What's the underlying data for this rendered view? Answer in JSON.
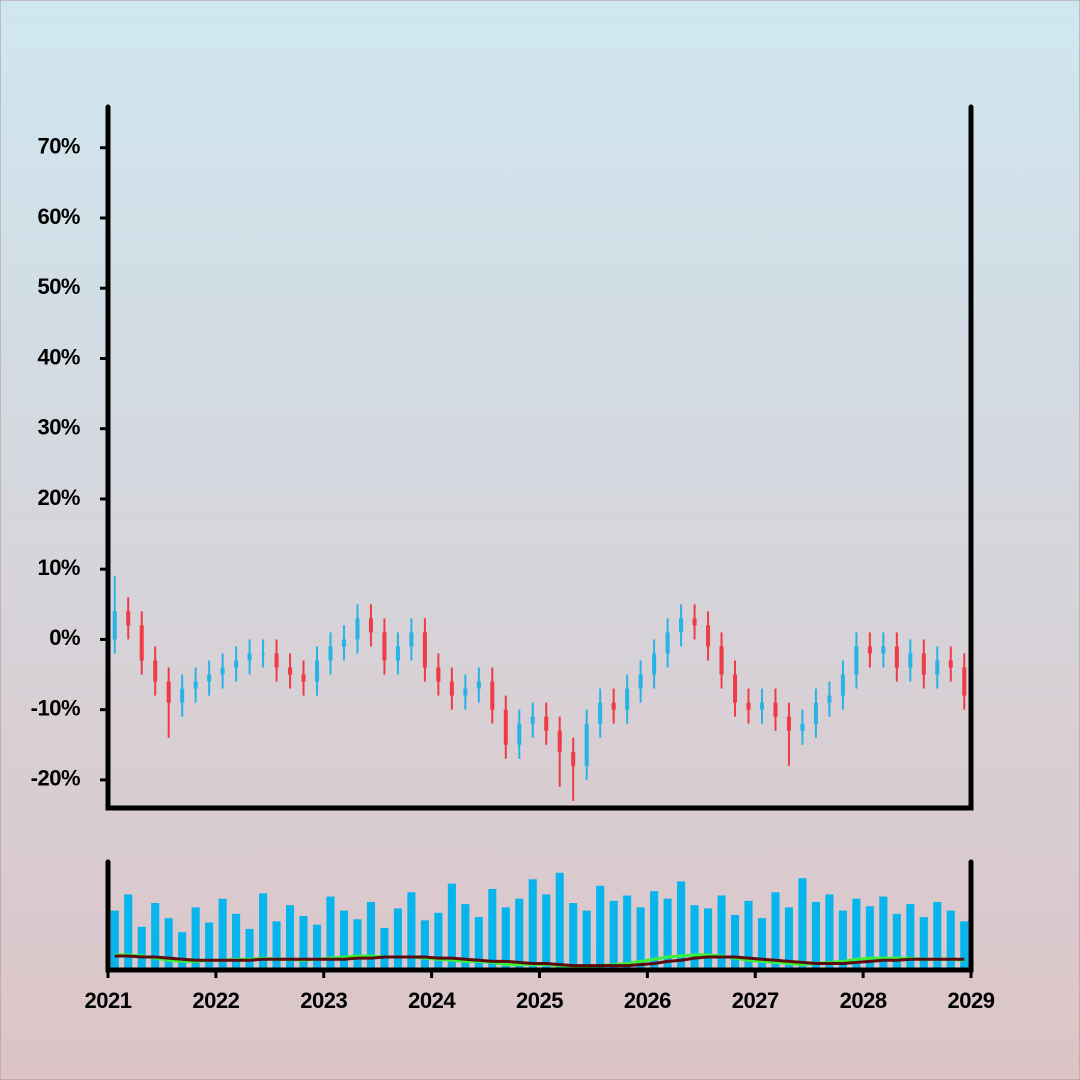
{
  "chart_data": {
    "type": "ohlc",
    "x": [
      2021.0625,
      2021.1875,
      2021.3125,
      2021.4375,
      2021.5625,
      2021.6875,
      2021.8125,
      2021.9375,
      2022.0625,
      2022.1875,
      2022.3125,
      2022.4375,
      2022.5625,
      2022.6875,
      2022.8125,
      2022.9375,
      2023.0625,
      2023.1875,
      2023.3125,
      2023.4375,
      2023.5625,
      2023.6875,
      2023.8125,
      2023.9375,
      2024.0625,
      2024.1875,
      2024.3125,
      2024.4375,
      2024.5625,
      2024.6875,
      2024.8125,
      2024.9375,
      2025.0625,
      2025.1875,
      2025.3125,
      2025.4375,
      2025.5625,
      2025.6875,
      2025.8125,
      2025.9375,
      2026.0625,
      2026.1875,
      2026.3125,
      2026.4375,
      2026.5625,
      2026.6875,
      2026.8125,
      2026.9375,
      2027.0625,
      2027.1875,
      2027.3125,
      2027.4375,
      2027.5625,
      2027.6875,
      2027.8125,
      2027.9375,
      2028.0625,
      2028.1875,
      2028.3125,
      2028.4375,
      2028.5625,
      2028.6875,
      2028.8125,
      2028.9375
    ],
    "open": [
      0,
      4,
      2,
      -3,
      -6,
      -9,
      -7,
      -6,
      -5,
      -4,
      -3,
      -2,
      -2,
      -4,
      -5,
      -6,
      -3,
      -1,
      0,
      3,
      1,
      -3,
      -1,
      1,
      -4,
      -6,
      -8,
      -7,
      -6,
      -10,
      -15,
      -12,
      -11,
      -13,
      -16,
      -18,
      -12,
      -9,
      -10,
      -7,
      -5,
      -2,
      1,
      3,
      2,
      -1,
      -5,
      -9,
      -10,
      -9,
      -11,
      -13,
      -12,
      -9,
      -8,
      -5,
      -1,
      -2,
      -1,
      -4,
      -2,
      -5,
      -3,
      -4
    ],
    "high": [
      9,
      6,
      4,
      -1,
      -4,
      -5,
      -4,
      -3,
      -2,
      -1,
      0,
      0,
      0,
      -2,
      -3,
      -1,
      1,
      2,
      5,
      5,
      3,
      1,
      3,
      3,
      -2,
      -4,
      -5,
      -4,
      -4,
      -8,
      -10,
      -9,
      -9,
      -11,
      -14,
      -10,
      -7,
      -7,
      -5,
      -3,
      0,
      3,
      5,
      5,
      4,
      1,
      -3,
      -7,
      -7,
      -7,
      -9,
      -10,
      -7,
      -6,
      -3,
      1,
      1,
      1,
      1,
      0,
      0,
      -1,
      -1,
      -2
    ],
    "low": [
      -2,
      0,
      -5,
      -8,
      -14,
      -11,
      -9,
      -8,
      -7,
      -6,
      -5,
      -4,
      -6,
      -7,
      -8,
      -8,
      -5,
      -3,
      -2,
      -1,
      -5,
      -5,
      -3,
      -6,
      -8,
      -10,
      -10,
      -9,
      -12,
      -17,
      -17,
      -14,
      -15,
      -21,
      -23,
      -20,
      -14,
      -12,
      -12,
      -9,
      -7,
      -4,
      -1,
      0,
      -3,
      -7,
      -11,
      -12,
      -12,
      -13,
      -18,
      -15,
      -14,
      -11,
      -10,
      -7,
      -4,
      -4,
      -6,
      -6,
      -7,
      -7,
      -6,
      -10
    ],
    "close": [
      4,
      2,
      -3,
      -6,
      -9,
      -7,
      -6,
      -5,
      -4,
      -3,
      -2,
      -2,
      -4,
      -5,
      -6,
      -3,
      -1,
      0,
      3,
      1,
      -3,
      -1,
      1,
      -4,
      -6,
      -8,
      -7,
      -6,
      -10,
      -15,
      -12,
      -11,
      -13,
      -16,
      -18,
      -12,
      -9,
      -10,
      -7,
      -5,
      -2,
      1,
      3,
      2,
      -1,
      -5,
      -9,
      -10,
      -9,
      -11,
      -13,
      -12,
      -9,
      -8,
      -5,
      -1,
      -2,
      -1,
      -4,
      -2,
      -5,
      -3,
      -4,
      -8
    ],
    "up_color": "#27b3e6",
    "down_color": "#ee3b45",
    "volume": [
      55,
      70,
      40,
      62,
      48,
      35,
      58,
      44,
      66,
      52,
      38,
      71,
      45,
      60,
      50,
      42,
      68,
      55,
      47,
      63,
      39,
      57,
      72,
      46,
      53,
      80,
      61,
      49,
      75,
      58,
      66,
      84,
      70,
      90,
      62,
      55,
      78,
      64,
      69,
      58,
      73,
      66,
      82,
      60,
      57,
      69,
      51,
      64,
      48,
      72,
      58,
      85,
      63,
      70,
      55,
      66,
      59,
      68,
      52,
      61,
      49,
      63,
      55,
      45
    ],
    "volume_color": "#08b4ec",
    "volume_ylim": [
      0,
      100
    ],
    "volume_lines": [
      {
        "color": "#3cf03c",
        "values": [
          14,
          14,
          13,
          11,
          9,
          8,
          8,
          9,
          9,
          10,
          10,
          11,
          10,
          10,
          9,
          10,
          11,
          12,
          13,
          13,
          12,
          12,
          12,
          11,
          10,
          9,
          8,
          8,
          7,
          5,
          5,
          5,
          5,
          4,
          3,
          3,
          4,
          5,
          6,
          8,
          10,
          12,
          13,
          14,
          14,
          13,
          11,
          9,
          8,
          7,
          6,
          5,
          6,
          7,
          8,
          10,
          11,
          11,
          11,
          11,
          10,
          10,
          10,
          9
        ]
      },
      {
        "color": "#5a0a0a",
        "values": [
          13,
          13,
          12,
          12,
          11,
          10,
          9,
          9,
          9,
          9,
          9,
          10,
          10,
          10,
          10,
          10,
          10,
          10,
          11,
          11,
          12,
          12,
          12,
          12,
          11,
          11,
          10,
          9,
          8,
          8,
          7,
          6,
          6,
          5,
          4,
          4,
          4,
          4,
          4,
          5,
          6,
          8,
          9,
          11,
          12,
          12,
          12,
          11,
          10,
          9,
          8,
          7,
          6,
          6,
          6,
          7,
          8,
          9,
          9,
          10,
          10,
          10,
          10,
          10
        ]
      }
    ],
    "xlim": [
      2021,
      2029
    ],
    "xticks": [
      2021,
      2022,
      2023,
      2024,
      2025,
      2026,
      2027,
      2028,
      2029
    ],
    "ylim": [
      -24,
      75.8
    ],
    "yticks": [
      {
        "value": -20,
        "label": "-20%"
      },
      {
        "value": -10,
        "label": "-10%"
      },
      {
        "value": 0,
        "label": "0%"
      },
      {
        "value": 10,
        "label": "10%"
      },
      {
        "value": 20,
        "label": "20%"
      },
      {
        "value": 30,
        "label": "30%"
      },
      {
        "value": 40,
        "label": "40%"
      },
      {
        "value": 50,
        "label": "50%"
      },
      {
        "value": 60,
        "label": "60%"
      },
      {
        "value": 70,
        "label": "70%"
      }
    ]
  }
}
